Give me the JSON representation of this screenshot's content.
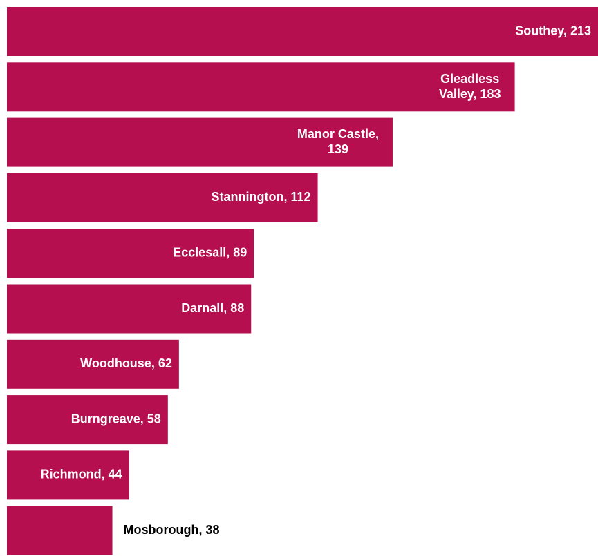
{
  "chart_data": {
    "type": "bar",
    "orientation": "horizontal",
    "categories": [
      "Southey",
      "Gleadless Valley",
      "Manor Castle",
      "Stannington",
      "Ecclesall",
      "Darnall",
      "Woodhouse",
      "Burngreave",
      "Richmond",
      "Mosborough"
    ],
    "values": [
      213,
      183,
      139,
      112,
      89,
      88,
      62,
      58,
      44,
      38
    ],
    "value_labels": [
      "Southey, 213",
      "Gleadless Valley, 183",
      "Manor Castle, 139",
      "Stannington, 112",
      "Ecclesall, 89",
      "Darnall, 88",
      "Woodhouse, 62",
      "Burngreave, 58",
      "Richmond, 44",
      "Mosborough, 38"
    ],
    "color": "#b50f4f",
    "xlim": [
      0,
      213
    ]
  }
}
